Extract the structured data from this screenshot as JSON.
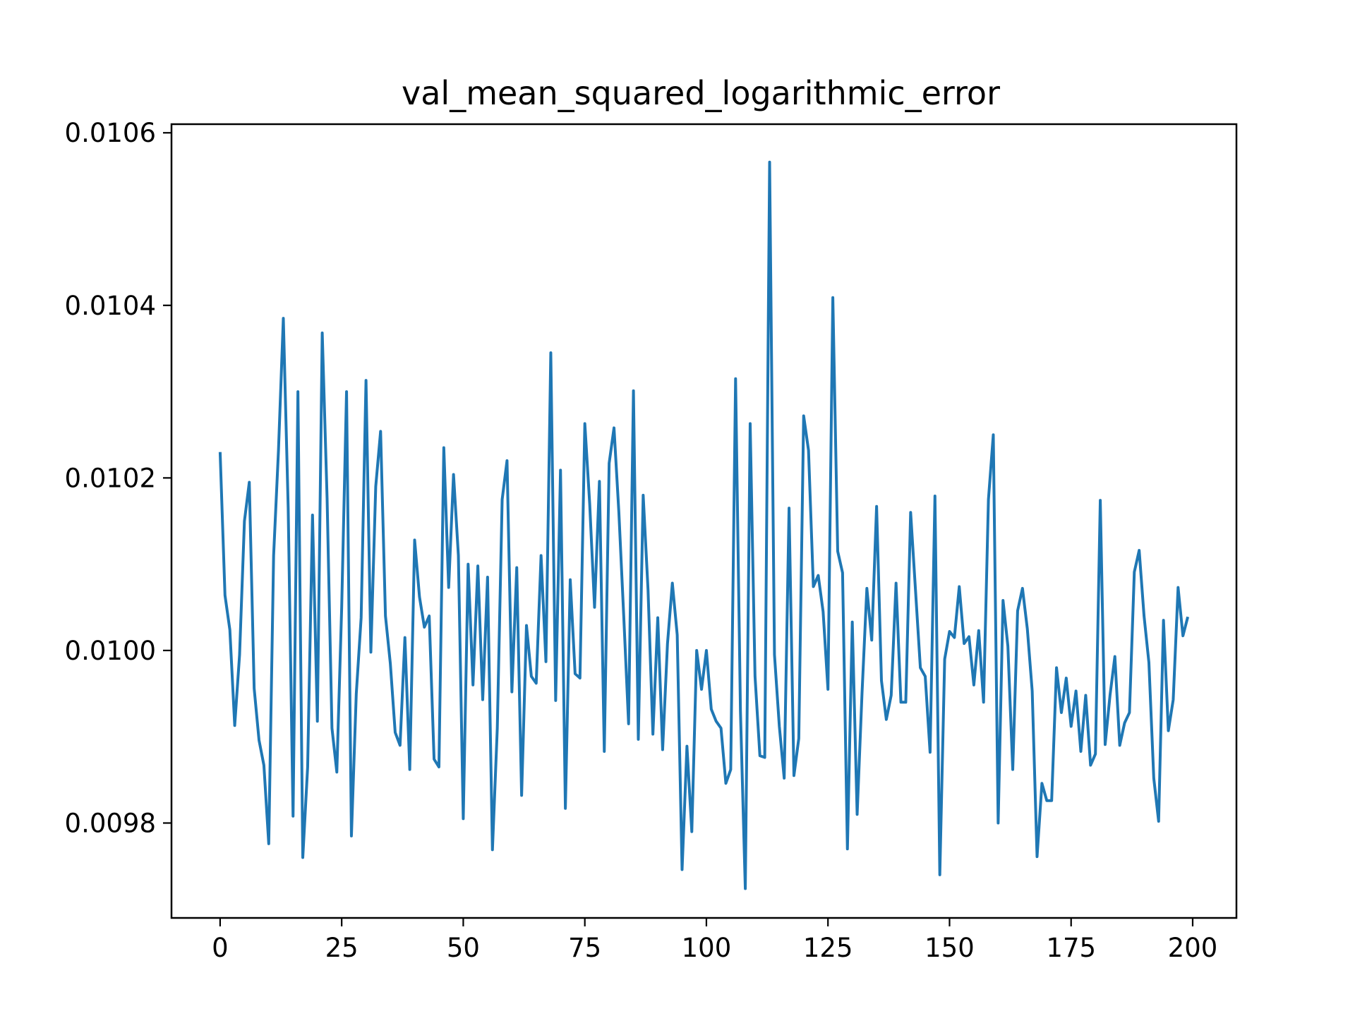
{
  "chart_data": {
    "type": "line",
    "title": "val_mean_squared_logarithmic_error",
    "xlabel": "",
    "ylabel": "",
    "xlim": [
      -10,
      209
    ],
    "ylim": [
      0.00969,
      0.01061
    ],
    "x_ticks": [
      0,
      25,
      50,
      75,
      100,
      125,
      150,
      175,
      200
    ],
    "x_tick_labels": [
      "0",
      "25",
      "50",
      "75",
      "100",
      "125",
      "150",
      "175",
      "200"
    ],
    "y_ticks": [
      0.0098,
      0.01,
      0.0102,
      0.0104,
      0.0106
    ],
    "y_tick_labels": [
      "0.0098",
      "0.0100",
      "0.0102",
      "0.0104",
      "0.0106"
    ],
    "grid": false,
    "legend": "none",
    "series": [
      {
        "color": "#1f77b4",
        "x_start": 0,
        "x_step": 1,
        "values": [
          0.01023,
          0.010064,
          0.010024,
          0.009913,
          0.009995,
          0.01015,
          0.010195,
          0.009956,
          0.009896,
          0.009867,
          0.009776,
          0.01011,
          0.010232,
          0.010385,
          0.010165,
          0.009808,
          0.0103,
          0.00976,
          0.009865,
          0.010157,
          0.009918,
          0.010368,
          0.010176,
          0.00991,
          0.009859,
          0.01005,
          0.0103,
          0.009785,
          0.00995,
          0.010038,
          0.010313,
          0.009998,
          0.01019,
          0.010254,
          0.01004,
          0.009985,
          0.009905,
          0.00989,
          0.010015,
          0.009862,
          0.010128,
          0.010062,
          0.010027,
          0.01004,
          0.009874,
          0.009865,
          0.010235,
          0.010073,
          0.010204,
          0.01011,
          0.009805,
          0.0101,
          0.00996,
          0.010098,
          0.009943,
          0.010085,
          0.009769,
          0.00991,
          0.010175,
          0.01022,
          0.009952,
          0.010096,
          0.009832,
          0.010029,
          0.00997,
          0.009962,
          0.01011,
          0.009987,
          0.010345,
          0.009942,
          0.010209,
          0.009817,
          0.010082,
          0.009973,
          0.009968,
          0.010263,
          0.01017,
          0.01005,
          0.010196,
          0.009883,
          0.010217,
          0.010258,
          0.01016,
          0.01004,
          0.009915,
          0.010301,
          0.009897,
          0.01018,
          0.01007,
          0.009903,
          0.010038,
          0.009885,
          0.010008,
          0.010078,
          0.010018,
          0.009746,
          0.009889,
          0.00979,
          0.01,
          0.009955,
          0.01,
          0.009932,
          0.009918,
          0.00991,
          0.009846,
          0.009862,
          0.010315,
          0.00993,
          0.009724,
          0.010263,
          0.00997,
          0.009878,
          0.009876,
          0.010566,
          0.009995,
          0.009912,
          0.009852,
          0.010165,
          0.009855,
          0.009898,
          0.010272,
          0.010232,
          0.010074,
          0.010087,
          0.010045,
          0.009955,
          0.010409,
          0.010115,
          0.01009,
          0.00977,
          0.010033,
          0.00981,
          0.00995,
          0.010072,
          0.010012,
          0.010167,
          0.009965,
          0.00992,
          0.009948,
          0.010078,
          0.00994,
          0.00994,
          0.01016,
          0.01007,
          0.00998,
          0.00997,
          0.009882,
          0.010179,
          0.00974,
          0.00999,
          0.010022,
          0.010015,
          0.010074,
          0.010008,
          0.010016,
          0.00996,
          0.010023,
          0.00994,
          0.010175,
          0.01025,
          0.0098,
          0.010058,
          0.010005,
          0.009862,
          0.010046,
          0.010072,
          0.010025,
          0.009953,
          0.009761,
          0.009846,
          0.009826,
          0.009826,
          0.00998,
          0.009928,
          0.009968,
          0.009912,
          0.009953,
          0.009883,
          0.009948,
          0.009867,
          0.00988,
          0.010174,
          0.009891,
          0.009948,
          0.009993,
          0.00989,
          0.009916,
          0.009928,
          0.010091,
          0.010116,
          0.01004,
          0.009986,
          0.009852,
          0.009802,
          0.010035,
          0.009907,
          0.009943,
          0.010073,
          0.010017,
          0.010039
        ]
      }
    ]
  }
}
